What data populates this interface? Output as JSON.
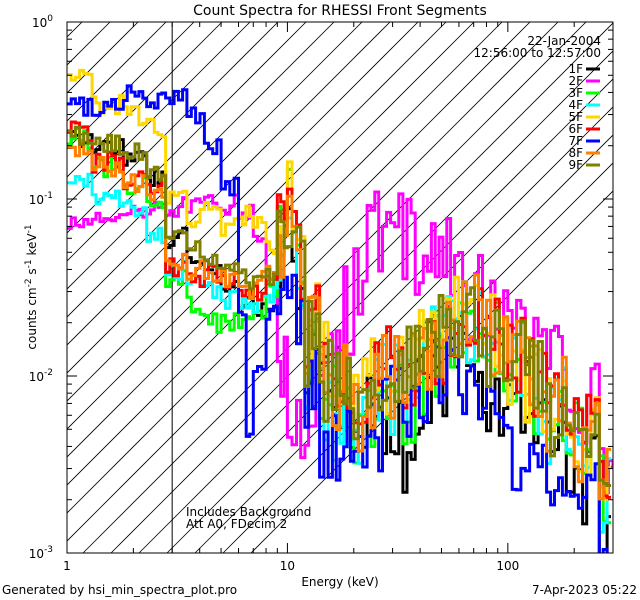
{
  "chart_data": {
    "type": "line",
    "title": "Count Spectra for RHESSI Front Segments",
    "xlabel": "Energy (keV)",
    "ylabel_parts": {
      "a": "counts cm",
      "b": "-2",
      "c": " s",
      "d": "-1",
      "e": " keV",
      "f": "-1"
    },
    "xscale": "log",
    "yscale": "log",
    "xlim": [
      1,
      300
    ],
    "ylim": [
      0.001,
      1
    ],
    "x_ticks": [
      {
        "v": 1,
        "label": "1"
      },
      {
        "v": 10,
        "label": "10"
      },
      {
        "v": 100,
        "label": "100"
      }
    ],
    "y_ticks": [
      {
        "v": 1,
        "base": "10",
        "exp": "0"
      },
      {
        "v": 0.1,
        "base": "10",
        "exp": "-1"
      },
      {
        "v": 0.01,
        "base": "10",
        "exp": "-2"
      },
      {
        "v": 0.001,
        "base": "10",
        "exp": "-3"
      }
    ],
    "hatched_region": [
      1,
      3
    ],
    "header": {
      "date": "22-Jan-2004",
      "time_range": "12:56:00 to 12:57:00"
    },
    "annotations": [
      "Includes Background",
      "Att A0, FDecim 2"
    ],
    "series": [
      {
        "name": "1F",
        "color": "#000000",
        "points": [
          [
            1.0,
            0.22
          ],
          [
            1.3,
            0.2
          ],
          [
            1.8,
            0.17
          ],
          [
            2.3,
            0.13
          ],
          [
            2.8,
            0.06
          ],
          [
            3.5,
            0.045
          ],
          [
            4.2,
            0.04
          ],
          [
            5.0,
            0.03
          ],
          [
            6.0,
            0.027
          ],
          [
            7.0,
            0.024
          ],
          [
            8.0,
            0.025
          ],
          [
            9.0,
            0.04
          ],
          [
            10.0,
            0.08
          ],
          [
            11.0,
            0.03
          ],
          [
            12.0,
            0.015
          ],
          [
            14.0,
            0.009
          ],
          [
            16.0,
            0.009
          ],
          [
            18.0,
            0.007
          ],
          [
            20.0,
            0.006
          ],
          [
            23.0,
            0.006
          ],
          [
            27.0,
            0.005
          ],
          [
            32.0,
            0.004
          ],
          [
            38.0,
            0.0045
          ],
          [
            45.0,
            0.009
          ],
          [
            55.0,
            0.013
          ],
          [
            65.0,
            0.011
          ],
          [
            80.0,
            0.008
          ],
          [
            100.0,
            0.006
          ],
          [
            120.0,
            0.005
          ],
          [
            150.0,
            0.004
          ],
          [
            200.0,
            0.0025
          ],
          [
            260.0,
            0.0012
          ]
        ]
      },
      {
        "name": "2F",
        "color": "#ff00ff",
        "points": [
          [
            1.0,
            0.075
          ],
          [
            1.3,
            0.08
          ],
          [
            1.8,
            0.085
          ],
          [
            2.3,
            0.09
          ],
          [
            2.8,
            0.09
          ],
          [
            3.5,
            0.09
          ],
          [
            4.2,
            0.092
          ],
          [
            5.0,
            0.093
          ],
          [
            6.0,
            0.085
          ],
          [
            7.0,
            0.06
          ],
          [
            8.0,
            0.035
          ],
          [
            9.0,
            0.01
          ],
          [
            10.0,
            0.007
          ],
          [
            11.0,
            0.006
          ],
          [
            12.0,
            0.0075
          ],
          [
            14.0,
            0.011
          ],
          [
            16.0,
            0.013
          ],
          [
            18.0,
            0.022
          ],
          [
            20.0,
            0.042
          ],
          [
            23.0,
            0.06
          ],
          [
            27.0,
            0.07
          ],
          [
            32.0,
            0.062
          ],
          [
            38.0,
            0.05
          ],
          [
            45.0,
            0.044
          ],
          [
            55.0,
            0.034
          ],
          [
            65.0,
            0.028
          ],
          [
            80.0,
            0.024
          ],
          [
            100.0,
            0.02
          ],
          [
            120.0,
            0.016
          ],
          [
            150.0,
            0.011
          ],
          [
            200.0,
            0.0065
          ],
          [
            260.0,
            0.0035
          ],
          [
            300.0,
            0.0028
          ]
        ]
      },
      {
        "name": "3F",
        "color": "#00ff00",
        "points": [
          [
            1.0,
            0.22
          ],
          [
            1.3,
            0.15
          ],
          [
            1.8,
            0.12
          ],
          [
            2.3,
            0.09
          ],
          [
            2.8,
            0.035
          ],
          [
            3.5,
            0.025
          ],
          [
            4.2,
            0.02
          ],
          [
            5.0,
            0.02
          ],
          [
            6.0,
            0.02
          ],
          [
            7.0,
            0.023
          ],
          [
            8.0,
            0.03
          ],
          [
            9.0,
            0.05
          ],
          [
            10.0,
            0.11
          ],
          [
            11.0,
            0.03
          ],
          [
            12.0,
            0.012
          ],
          [
            14.0,
            0.009
          ],
          [
            16.0,
            0.008
          ],
          [
            18.0,
            0.007
          ],
          [
            20.0,
            0.006
          ],
          [
            23.0,
            0.006
          ],
          [
            27.0,
            0.006
          ],
          [
            32.0,
            0.007
          ],
          [
            38.0,
            0.009
          ],
          [
            45.0,
            0.014
          ],
          [
            55.0,
            0.02
          ],
          [
            65.0,
            0.02
          ],
          [
            80.0,
            0.015
          ],
          [
            100.0,
            0.011
          ],
          [
            120.0,
            0.008
          ],
          [
            150.0,
            0.006
          ],
          [
            200.0,
            0.004
          ],
          [
            260.0,
            0.0022
          ]
        ]
      },
      {
        "name": "4F",
        "color": "#00ffff",
        "points": [
          [
            1.0,
            0.13
          ],
          [
            1.3,
            0.1
          ],
          [
            1.8,
            0.09
          ],
          [
            2.3,
            0.06
          ],
          [
            2.8,
            0.04
          ],
          [
            3.5,
            0.033
          ],
          [
            4.2,
            0.03
          ],
          [
            5.0,
            0.027
          ],
          [
            6.0,
            0.025
          ],
          [
            7.0,
            0.025
          ],
          [
            8.0,
            0.03
          ],
          [
            9.0,
            0.045
          ],
          [
            10.0,
            0.1
          ],
          [
            11.0,
            0.04
          ],
          [
            12.0,
            0.012
          ],
          [
            14.0,
            0.007
          ],
          [
            16.0,
            0.006
          ],
          [
            18.0,
            0.006
          ],
          [
            20.0,
            0.006
          ],
          [
            23.0,
            0.007
          ],
          [
            27.0,
            0.008
          ],
          [
            32.0,
            0.009
          ],
          [
            38.0,
            0.012
          ],
          [
            45.0,
            0.017
          ],
          [
            55.0,
            0.02
          ],
          [
            65.0,
            0.019
          ],
          [
            80.0,
            0.014
          ],
          [
            100.0,
            0.01
          ],
          [
            120.0,
            0.008
          ],
          [
            150.0,
            0.006
          ],
          [
            200.0,
            0.004
          ],
          [
            260.0,
            0.002
          ]
        ]
      },
      {
        "name": "5F",
        "color": "#ffd700",
        "points": [
          [
            1.0,
            0.52
          ],
          [
            1.3,
            0.34
          ],
          [
            1.8,
            0.3
          ],
          [
            2.3,
            0.25
          ],
          [
            2.8,
            0.1
          ],
          [
            3.5,
            0.08
          ],
          [
            4.2,
            0.09
          ],
          [
            5.0,
            0.07
          ],
          [
            6.0,
            0.08
          ],
          [
            7.0,
            0.07
          ],
          [
            8.0,
            0.055
          ],
          [
            9.0,
            0.06
          ],
          [
            10.0,
            0.1
          ],
          [
            11.0,
            0.05
          ],
          [
            12.0,
            0.02
          ],
          [
            14.0,
            0.012
          ],
          [
            16.0,
            0.01
          ],
          [
            18.0,
            0.009
          ],
          [
            20.0,
            0.008
          ],
          [
            23.0,
            0.009
          ],
          [
            27.0,
            0.01
          ],
          [
            32.0,
            0.011
          ],
          [
            38.0,
            0.013
          ],
          [
            45.0,
            0.017
          ],
          [
            55.0,
            0.021
          ],
          [
            65.0,
            0.021
          ],
          [
            80.0,
            0.016
          ],
          [
            100.0,
            0.012
          ],
          [
            120.0,
            0.009
          ],
          [
            150.0,
            0.007
          ],
          [
            200.0,
            0.0045
          ],
          [
            260.0,
            0.0025
          ]
        ]
      },
      {
        "name": "6F",
        "color": "#ff0000",
        "points": [
          [
            1.0,
            0.24
          ],
          [
            1.3,
            0.16
          ],
          [
            1.8,
            0.13
          ],
          [
            2.3,
            0.12
          ],
          [
            2.8,
            0.04
          ],
          [
            3.5,
            0.035
          ],
          [
            4.2,
            0.038
          ],
          [
            5.0,
            0.035
          ],
          [
            6.0,
            0.03
          ],
          [
            7.0,
            0.03
          ],
          [
            8.0,
            0.035
          ],
          [
            9.0,
            0.06
          ],
          [
            10.0,
            0.12
          ],
          [
            11.0,
            0.04
          ],
          [
            12.0,
            0.02
          ],
          [
            14.0,
            0.012
          ],
          [
            16.0,
            0.009
          ],
          [
            18.0,
            0.008
          ],
          [
            20.0,
            0.01
          ],
          [
            23.0,
            0.009
          ],
          [
            27.0,
            0.011
          ],
          [
            32.0,
            0.01
          ],
          [
            38.0,
            0.012
          ],
          [
            45.0,
            0.016
          ],
          [
            55.0,
            0.022
          ],
          [
            65.0,
            0.022
          ],
          [
            80.0,
            0.017
          ],
          [
            100.0,
            0.012
          ],
          [
            120.0,
            0.009
          ],
          [
            150.0,
            0.007
          ],
          [
            200.0,
            0.0045
          ],
          [
            260.0,
            0.0024
          ]
        ]
      },
      {
        "name": "7F",
        "color": "#0000ff",
        "points": [
          [
            1.0,
            0.34
          ],
          [
            1.3,
            0.32
          ],
          [
            1.8,
            0.39
          ],
          [
            2.3,
            0.37
          ],
          [
            2.8,
            0.38
          ],
          [
            3.5,
            0.3
          ],
          [
            4.2,
            0.2
          ],
          [
            5.0,
            0.12
          ],
          [
            6.0,
            0.022
          ],
          [
            6.5,
            0.005
          ],
          [
            7.0,
            0.012
          ],
          [
            8.0,
            0.022
          ],
          [
            9.0,
            0.03
          ],
          [
            10.0,
            0.05
          ],
          [
            11.0,
            0.02
          ],
          [
            12.0,
            0.009
          ],
          [
            14.0,
            0.005
          ],
          [
            16.0,
            0.004
          ],
          [
            18.0,
            0.004
          ],
          [
            20.0,
            0.0045
          ],
          [
            23.0,
            0.005
          ],
          [
            27.0,
            0.007
          ],
          [
            32.0,
            0.008
          ],
          [
            38.0,
            0.009
          ],
          [
            45.0,
            0.011
          ],
          [
            55.0,
            0.01
          ],
          [
            65.0,
            0.008
          ],
          [
            80.0,
            0.006
          ],
          [
            100.0,
            0.004
          ],
          [
            120.0,
            0.0035
          ],
          [
            150.0,
            0.003
          ],
          [
            200.0,
            0.002
          ],
          [
            260.0,
            0.0011
          ]
        ]
      },
      {
        "name": "8F",
        "color": "#ff8000",
        "points": [
          [
            1.0,
            0.19
          ],
          [
            1.3,
            0.15
          ],
          [
            1.8,
            0.12
          ],
          [
            2.3,
            0.1
          ],
          [
            2.8,
            0.045
          ],
          [
            3.5,
            0.04
          ],
          [
            4.2,
            0.035
          ],
          [
            5.0,
            0.035
          ],
          [
            6.0,
            0.03
          ],
          [
            7.0,
            0.035
          ],
          [
            8.0,
            0.04
          ],
          [
            9.0,
            0.055
          ],
          [
            10.0,
            0.09
          ],
          [
            11.0,
            0.045
          ],
          [
            12.0,
            0.018
          ],
          [
            14.0,
            0.011
          ],
          [
            16.0,
            0.009
          ],
          [
            18.0,
            0.008
          ],
          [
            20.0,
            0.007
          ],
          [
            23.0,
            0.008
          ],
          [
            27.0,
            0.009
          ],
          [
            32.0,
            0.01
          ],
          [
            38.0,
            0.012
          ],
          [
            45.0,
            0.018
          ],
          [
            55.0,
            0.022
          ],
          [
            65.0,
            0.021
          ],
          [
            80.0,
            0.016
          ],
          [
            100.0,
            0.012
          ],
          [
            120.0,
            0.009
          ],
          [
            150.0,
            0.007
          ],
          [
            200.0,
            0.0045
          ],
          [
            260.0,
            0.0025
          ]
        ]
      },
      {
        "name": "9F",
        "color": "#808000",
        "points": [
          [
            1.0,
            0.23
          ],
          [
            1.3,
            0.2
          ],
          [
            1.8,
            0.18
          ],
          [
            2.3,
            0.14
          ],
          [
            2.8,
            0.06
          ],
          [
            3.5,
            0.05
          ],
          [
            4.2,
            0.045
          ],
          [
            5.0,
            0.04
          ],
          [
            6.0,
            0.035
          ],
          [
            7.0,
            0.035
          ],
          [
            8.0,
            0.035
          ],
          [
            9.0,
            0.05
          ],
          [
            10.0,
            0.08
          ],
          [
            11.0,
            0.04
          ],
          [
            12.0,
            0.015
          ],
          [
            14.0,
            0.01
          ],
          [
            16.0,
            0.008
          ],
          [
            18.0,
            0.007
          ],
          [
            20.0,
            0.008
          ],
          [
            23.0,
            0.009
          ],
          [
            27.0,
            0.01
          ],
          [
            32.0,
            0.011
          ],
          [
            38.0,
            0.013
          ],
          [
            45.0,
            0.017
          ],
          [
            55.0,
            0.021
          ],
          [
            65.0,
            0.02
          ],
          [
            80.0,
            0.016
          ],
          [
            100.0,
            0.012
          ],
          [
            120.0,
            0.009
          ],
          [
            150.0,
            0.0065
          ],
          [
            200.0,
            0.004
          ],
          [
            260.0,
            0.0022
          ]
        ]
      }
    ]
  },
  "footer": {
    "left": "Generated by hsi_min_spectra_plot.pro",
    "right": "7-Apr-2023 05:22"
  }
}
